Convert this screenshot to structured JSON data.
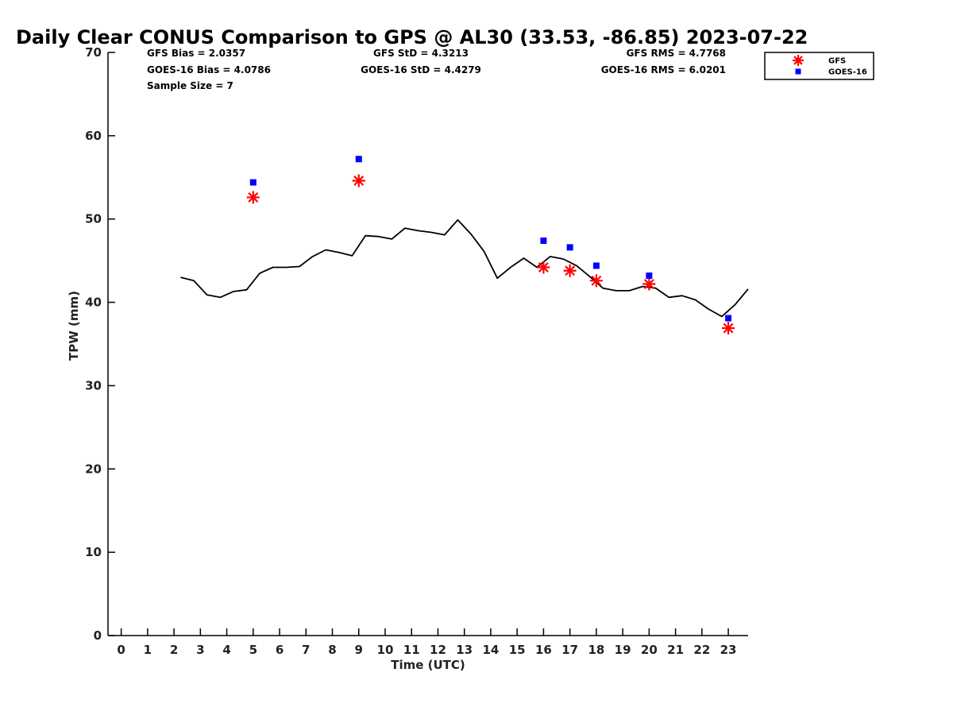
{
  "chart_data": {
    "type": "scatter",
    "title": "Daily Clear CONUS Comparison to GPS @ AL30 (33.53, -86.85) 2023-07-22",
    "xlabel": "Time (UTC)",
    "ylabel": "TPW (mm)",
    "xlim": [
      -0.5,
      23.75
    ],
    "ylim": [
      0,
      70
    ],
    "xticks": [
      0,
      1,
      2,
      3,
      4,
      5,
      6,
      7,
      8,
      9,
      10,
      11,
      12,
      13,
      14,
      15,
      16,
      17,
      18,
      19,
      20,
      21,
      22,
      23
    ],
    "yticks": [
      0,
      10,
      20,
      30,
      40,
      50,
      60,
      70
    ],
    "grid": false,
    "legend_position": "top-right",
    "stats": [
      {
        "id": "gfs-bias",
        "text": "GFS Bias = 2.0357",
        "anchor": "start"
      },
      {
        "id": "gfs-std",
        "text": "GFS StD = 4.3213",
        "anchor": "middle"
      },
      {
        "id": "gfs-rms",
        "text": "GFS RMS = 4.7768",
        "anchor": "end"
      },
      {
        "id": "goes-bias",
        "text": "GOES-16 Bias = 4.0786",
        "anchor": "start"
      },
      {
        "id": "goes-std",
        "text": "GOES-16 StD = 4.4279",
        "anchor": "middle"
      },
      {
        "id": "goes-rms",
        "text": "GOES-16 RMS = 6.0201",
        "anchor": "end"
      },
      {
        "id": "sample-size",
        "text": "Sample Size = 7",
        "anchor": "start"
      }
    ],
    "series": [
      {
        "name": "GPS",
        "kind": "line",
        "color": "#000000",
        "x": [
          2.25,
          2.75,
          3.25,
          3.75,
          4.25,
          4.75,
          5.25,
          5.75,
          6.25,
          6.75,
          7.25,
          7.75,
          8.25,
          8.75,
          9.25,
          9.75,
          10.25,
          10.75,
          11.25,
          11.75,
          12.25,
          12.75,
          13.25,
          13.75,
          14.25,
          14.75,
          15.25,
          15.75,
          16.25,
          16.75,
          17.25,
          17.75,
          18.25,
          18.75,
          19.25,
          19.75,
          20.25,
          20.75,
          21.25,
          21.75,
          22.25,
          22.75,
          23.25,
          23.75
        ],
        "y": [
          43.0,
          42.6,
          40.9,
          40.6,
          41.3,
          41.5,
          43.5,
          44.2,
          44.2,
          44.3,
          45.5,
          46.3,
          46.0,
          45.6,
          48.0,
          47.9,
          47.6,
          48.9,
          48.6,
          48.4,
          48.1,
          49.9,
          48.2,
          46.1,
          42.9,
          44.2,
          45.3,
          44.2,
          45.5,
          45.2,
          44.4,
          43.1,
          41.7,
          41.4,
          41.4,
          41.9,
          41.7,
          40.6,
          40.8,
          40.3,
          39.2,
          38.3,
          39.7,
          41.6
        ]
      },
      {
        "name": "GFS",
        "kind": "marker",
        "marker": "asterisk",
        "color": "#ff0000",
        "x": [
          5,
          9,
          16,
          17,
          18,
          20,
          23
        ],
        "y": [
          52.6,
          54.6,
          44.2,
          43.8,
          42.6,
          42.2,
          36.9
        ]
      },
      {
        "name": "GOES-16",
        "kind": "marker",
        "marker": "square",
        "color": "#0000ff",
        "x": [
          5,
          9,
          16,
          17,
          18,
          20,
          23
        ],
        "y": [
          54.4,
          57.2,
          47.4,
          46.6,
          44.4,
          43.2,
          38.1
        ]
      }
    ],
    "legend": [
      {
        "name": "GFS",
        "marker": "asterisk",
        "color": "#ff0000"
      },
      {
        "name": "GOES-16",
        "marker": "square",
        "color": "#0000ff"
      }
    ]
  }
}
